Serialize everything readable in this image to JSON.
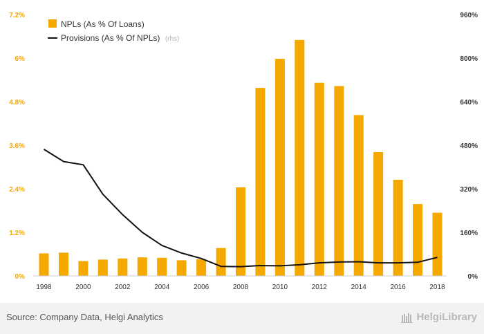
{
  "chart_data": {
    "type": "bar+line",
    "categories": [
      "1998",
      "1999",
      "2000",
      "2001",
      "2002",
      "2003",
      "2004",
      "2005",
      "2006",
      "2007",
      "2008",
      "2009",
      "2010",
      "2011",
      "2012",
      "2013",
      "2014",
      "2015",
      "2016",
      "2017",
      "2018"
    ],
    "x_tick_labels": [
      "1998",
      "2000",
      "2002",
      "2004",
      "2006",
      "2008",
      "2010",
      "2012",
      "2014",
      "2016",
      "2018"
    ],
    "series": [
      {
        "name": "NPLs (As % Of Loans)",
        "type": "bar",
        "axis": "left",
        "color": "#f5a800",
        "values": [
          0.62,
          0.64,
          0.41,
          0.45,
          0.48,
          0.51,
          0.5,
          0.43,
          0.46,
          0.77,
          2.44,
          5.18,
          5.98,
          6.5,
          5.32,
          5.23,
          4.43,
          3.41,
          2.65,
          1.98,
          1.74
        ]
      },
      {
        "name": "Provisions (As % Of NPLs)",
        "legend_suffix": "(rhs)",
        "type": "line",
        "axis": "right",
        "color": "#111111",
        "values": [
          465,
          420,
          408,
          300,
          225,
          160,
          112,
          84,
          64,
          35,
          34,
          38,
          37,
          41,
          48,
          51,
          52,
          48,
          48,
          50,
          68
        ]
      }
    ],
    "y_left": {
      "min": 0,
      "max": 7.2,
      "ticks": [
        "0%",
        "1.2%",
        "2.4%",
        "3.6%",
        "4.8%",
        "6%",
        "7.2%"
      ]
    },
    "y_right": {
      "min": 0,
      "max": 960,
      "ticks": [
        "0%",
        "160%",
        "320%",
        "480%",
        "640%",
        "800%",
        "960%"
      ]
    },
    "legend_position": "top-left",
    "grid": false
  },
  "footer": {
    "source": "Source: Company Data, Helgi Analytics",
    "brand": "HelgiLibrary"
  }
}
